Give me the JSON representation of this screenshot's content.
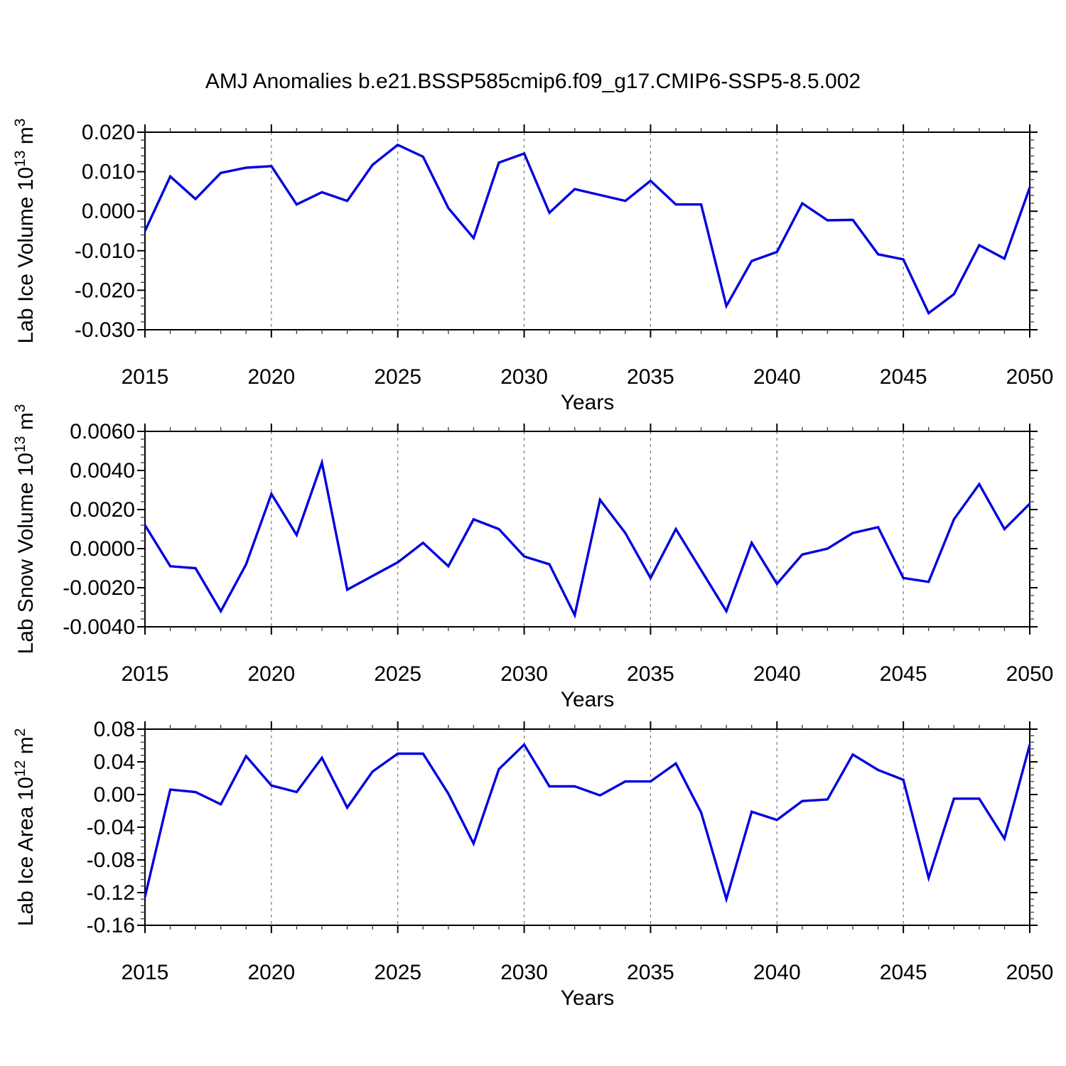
{
  "title": "AMJ Anomalies b.e21.BSSP585cmip6.f09_g17.CMIP6-SSP5-8.5.002",
  "colors": {
    "line": "#0000e0",
    "grid": "#808080",
    "frame": "#000000",
    "minor_tick": "#444444",
    "background": "#ffffff"
  },
  "years": [
    2015,
    2016,
    2017,
    2018,
    2019,
    2020,
    2021,
    2022,
    2023,
    2024,
    2025,
    2026,
    2027,
    2028,
    2029,
    2030,
    2031,
    2032,
    2033,
    2034,
    2035,
    2036,
    2037,
    2038,
    2039,
    2040,
    2041,
    2042,
    2043,
    2044,
    2045,
    2046,
    2047,
    2048,
    2049,
    2050
  ],
  "chart_data": [
    {
      "type": "line",
      "name": "lab-ice-volume",
      "ylabel": "Lab Ice Volume 10^13^ m^3^",
      "xlabel": "Years",
      "series_name": "AMJ Lab Ice Volume anomaly",
      "values": [
        -0.005,
        0.0088,
        0.0031,
        0.0097,
        0.011,
        0.0114,
        0.0017,
        0.0048,
        0.0026,
        0.0117,
        0.0168,
        0.0138,
        0.0008,
        -0.0068,
        0.0123,
        0.0146,
        -0.0004,
        0.0056,
        0.0041,
        0.0026,
        0.0077,
        0.0017,
        0.0017,
        -0.024,
        -0.0126,
        -0.0103,
        0.002,
        -0.0023,
        -0.0022,
        -0.0109,
        -0.0122,
        -0.0258,
        -0.021,
        -0.0086,
        -0.012,
        0.006
      ],
      "xlim": [
        2015,
        2050
      ],
      "ylim": [
        -0.03,
        0.02
      ],
      "ytick_step": 0.01,
      "yminor_step": 0.002,
      "ytick_decimals": 3,
      "xtick_step": 5,
      "xminor_step": 1,
      "grid_years": [
        2020,
        2025,
        2030,
        2035,
        2040,
        2045
      ],
      "grid": "vertical-dashed",
      "legend": null
    },
    {
      "type": "line",
      "name": "lab-snow-volume",
      "ylabel": "Lab Snow Volume 10^13^ m^3^",
      "xlabel": "Years",
      "series_name": "AMJ Lab Snow Volume anomaly",
      "values": [
        0.0012,
        -0.0009,
        -0.001,
        -0.0032,
        -0.0008,
        0.0028,
        0.0007,
        0.0044,
        -0.0021,
        -0.0014,
        -0.0007,
        0.0003,
        -0.0009,
        0.0015,
        0.001,
        -0.0004,
        -0.0008,
        -0.0034,
        0.0025,
        0.0008,
        -0.0015,
        0.001,
        -0.0011,
        -0.0032,
        0.0003,
        -0.0018,
        -0.0003,
        0.0,
        0.0008,
        0.0011,
        -0.0015,
        -0.0017,
        0.0015,
        0.0033,
        0.001,
        0.0023
      ],
      "xlim": [
        2015,
        2050
      ],
      "ylim": [
        -0.004,
        0.006
      ],
      "ytick_step": 0.002,
      "yminor_step": 0.0004,
      "ytick_decimals": 4,
      "xtick_step": 5,
      "xminor_step": 1,
      "grid_years": [
        2020,
        2025,
        2030,
        2035,
        2040,
        2045
      ],
      "grid": "vertical-dashed",
      "legend": null
    },
    {
      "type": "line",
      "name": "lab-ice-area",
      "ylabel": "Lab Ice Area 10^12^ m^2^",
      "xlabel": "Years",
      "series_name": "AMJ Lab Ice Area anomaly",
      "values": [
        -0.125,
        0.006,
        0.003,
        -0.012,
        0.047,
        0.011,
        0.003,
        0.045,
        -0.016,
        0.028,
        0.05,
        0.05,
        0.001,
        -0.06,
        0.031,
        0.061,
        0.01,
        0.01,
        -0.001,
        0.016,
        0.016,
        0.038,
        -0.022,
        -0.128,
        -0.021,
        -0.031,
        -0.008,
        -0.006,
        0.049,
        0.03,
        0.018,
        -0.102,
        -0.005,
        -0.005,
        -0.054,
        0.061
      ],
      "xlim": [
        2015,
        2050
      ],
      "ylim": [
        -0.16,
        0.08
      ],
      "ytick_step": 0.04,
      "yminor_step": 0.008,
      "ytick_decimals": 2,
      "xtick_step": 5,
      "xminor_step": 1,
      "grid_years": [
        2020,
        2025,
        2030,
        2035,
        2040,
        2045
      ],
      "grid": "vertical-dashed",
      "legend": null
    }
  ]
}
